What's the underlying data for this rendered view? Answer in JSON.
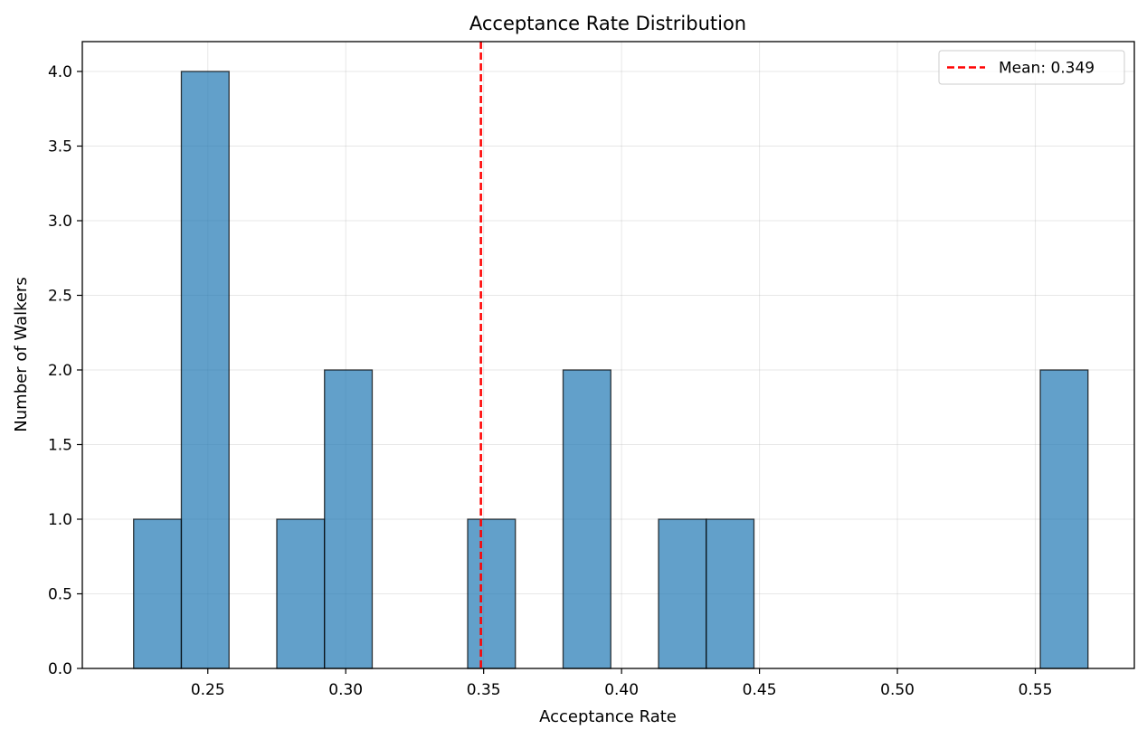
{
  "chart_data": {
    "type": "bar",
    "title": "Acceptance Rate Distribution",
    "xlabel": "Acceptance Rate",
    "ylabel": "Number of Walkers",
    "xlim": [
      0.2045,
      0.5859
    ],
    "ylim": [
      0,
      4.2
    ],
    "xticks": [
      0.25,
      0.3,
      0.35,
      0.4,
      0.45,
      0.5,
      0.55
    ],
    "xtick_labels": [
      "0.25",
      "0.30",
      "0.35",
      "0.40",
      "0.45",
      "0.50",
      "0.55"
    ],
    "yticks": [
      0.0,
      0.5,
      1.0,
      1.5,
      2.0,
      2.5,
      3.0,
      3.5,
      4.0
    ],
    "ytick_labels": [
      "0.0",
      "0.5",
      "1.0",
      "1.5",
      "2.0",
      "2.5",
      "3.0",
      "3.5",
      "4.0"
    ],
    "grid": true,
    "bar_color": "#1f77b4",
    "bar_edge_color": "#000000",
    "bins": [
      {
        "x0": 0.2231,
        "x1": 0.2404,
        "count": 1
      },
      {
        "x0": 0.2404,
        "x1": 0.2577,
        "count": 4
      },
      {
        "x0": 0.275,
        "x1": 0.2923,
        "count": 1
      },
      {
        "x0": 0.2923,
        "x1": 0.3096,
        "count": 2
      },
      {
        "x0": 0.3442,
        "x1": 0.3615,
        "count": 1
      },
      {
        "x0": 0.3788,
        "x1": 0.3961,
        "count": 2
      },
      {
        "x0": 0.4134,
        "x1": 0.4307,
        "count": 1
      },
      {
        "x0": 0.4307,
        "x1": 0.448,
        "count": 1
      },
      {
        "x0": 0.5518,
        "x1": 0.5691,
        "count": 2
      }
    ],
    "mean": 0.349,
    "mean_color": "#ff0000",
    "legend": {
      "label": "Mean: 0.349",
      "placement": "top-right"
    }
  }
}
